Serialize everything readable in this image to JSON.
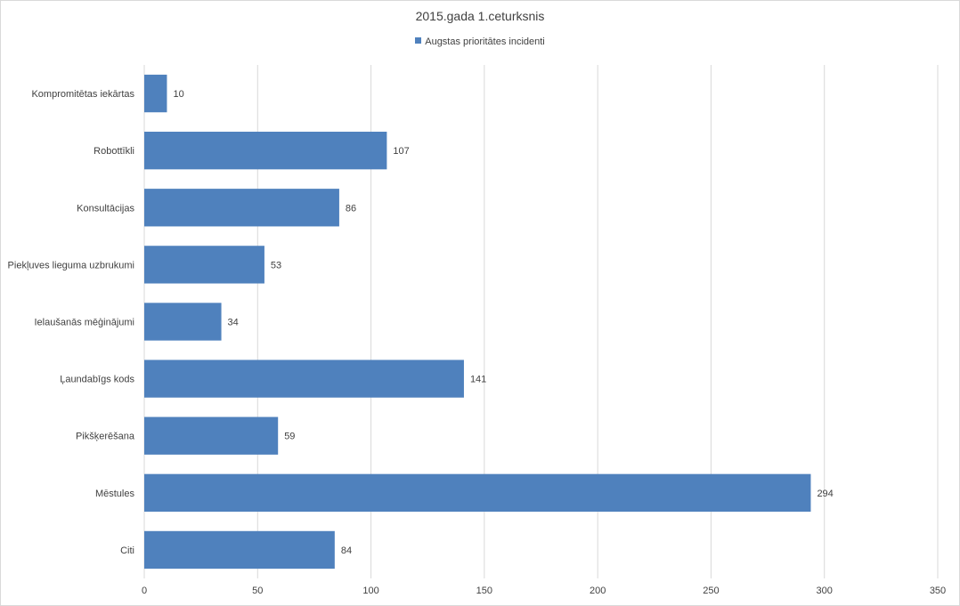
{
  "chart_data": {
    "type": "bar",
    "orientation": "horizontal",
    "title": "2015.gada 1.ceturksnis",
    "categories": [
      "Kompromitētas iekārtas",
      "Robottīkli",
      "Konsultācijas",
      "Piekļuves lieguma uzbrukumi",
      "Ielaušanās mēģinājumi",
      "Ļaundabīgs kods",
      "Pikšķerēšana",
      "Mēstules",
      "Citi"
    ],
    "series": [
      {
        "name": "Augstas prioritātes incidenti",
        "values": [
          10,
          107,
          86,
          53,
          34,
          141,
          59,
          294,
          84
        ],
        "color": "#4f81bd"
      }
    ],
    "xlim": [
      0,
      350
    ],
    "xticks": [
      0,
      50,
      100,
      150,
      200,
      250,
      300,
      350
    ],
    "grid": "vertical",
    "legend_position": "top",
    "data_labels": true
  }
}
